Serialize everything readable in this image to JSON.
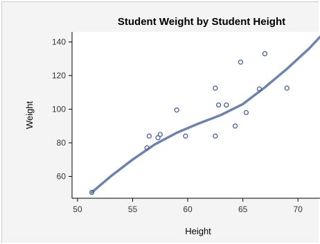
{
  "chart_data": {
    "type": "scatter",
    "title": "Student Weight by Student Height",
    "xlabel": "Height",
    "ylabel": "Weight",
    "xlim": [
      49.5,
      72
    ],
    "ylim": [
      47,
      146
    ],
    "xticks": [
      50,
      55,
      60,
      65,
      70
    ],
    "yticks": [
      60,
      80,
      100,
      120,
      140
    ],
    "grid": false,
    "legend": "none",
    "colors": {
      "plot_bg": "#ffffff",
      "outer_bg": "#f4f4f4",
      "marker": "#4a5f93",
      "fit_line": "#6e82aa",
      "axis": "#000000"
    },
    "series": [
      {
        "type": "scatter",
        "points": [
          [
            51.3,
            50.5
          ],
          [
            56.3,
            77
          ],
          [
            56.5,
            84
          ],
          [
            57.3,
            83
          ],
          [
            57.5,
            85
          ],
          [
            59.0,
            99.5
          ],
          [
            59.8,
            84
          ],
          [
            62.5,
            112.5
          ],
          [
            62.5,
            84
          ],
          [
            62.8,
            102.5
          ],
          [
            63.5,
            102.5
          ],
          [
            64.3,
            90
          ],
          [
            64.8,
            128
          ],
          [
            65.3,
            98
          ],
          [
            66.5,
            112
          ],
          [
            67.0,
            133
          ],
          [
            69.0,
            112.5
          ]
        ]
      },
      {
        "type": "line",
        "points": [
          [
            51.3,
            50.5
          ],
          [
            53,
            60
          ],
          [
            55,
            70
          ],
          [
            57,
            79
          ],
          [
            59,
            86
          ],
          [
            61,
            91.5
          ],
          [
            63,
            96.5
          ],
          [
            65,
            103
          ],
          [
            67,
            113
          ],
          [
            69,
            124
          ],
          [
            71,
            136
          ],
          [
            72,
            143
          ]
        ]
      }
    ]
  }
}
